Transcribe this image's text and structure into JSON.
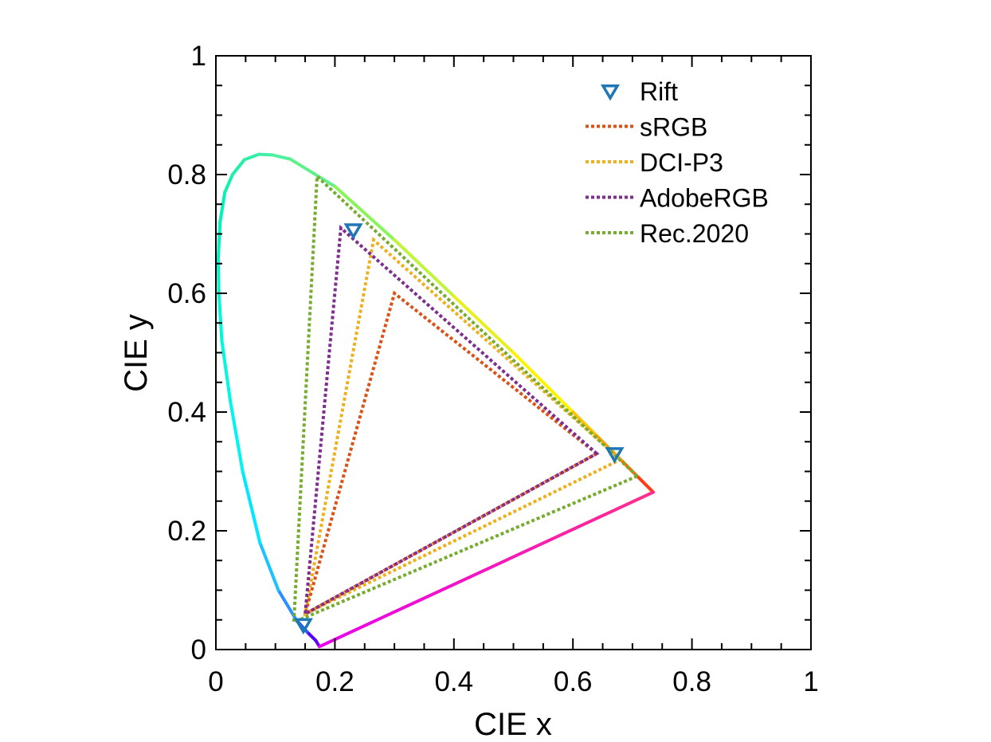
{
  "chart_data": {
    "type": "scatter",
    "xlabel": "CIE x",
    "ylabel": "CIE y",
    "xlim": [
      0,
      1
    ],
    "ylim": [
      0,
      1
    ],
    "x_ticks": [
      0,
      0.2,
      0.4,
      0.6,
      0.8,
      1
    ],
    "y_ticks": [
      0,
      0.2,
      0.4,
      0.6,
      0.8,
      1
    ],
    "x_tick_labels": [
      "0",
      "0.2",
      "0.4",
      "0.6",
      "0.8",
      "1"
    ],
    "y_tick_labels": [
      "0",
      "0.2",
      "0.4",
      "0.6",
      "0.8",
      "1"
    ],
    "grid": false,
    "legend_position": "top-right",
    "spectral_locus": {
      "x": [
        0.174,
        0.168,
        0.153,
        0.135,
        0.105,
        0.074,
        0.045,
        0.024,
        0.01,
        0.005,
        0.004,
        0.007,
        0.015,
        0.028,
        0.048,
        0.072,
        0.095,
        0.125,
        0.2,
        0.3,
        0.4,
        0.5,
        0.6,
        0.64,
        0.68,
        0.71,
        0.735
      ],
      "y": [
        0.005,
        0.015,
        0.03,
        0.05,
        0.1,
        0.18,
        0.3,
        0.42,
        0.52,
        0.6,
        0.66,
        0.72,
        0.77,
        0.8,
        0.825,
        0.834,
        0.833,
        0.826,
        0.78,
        0.69,
        0.595,
        0.5,
        0.4,
        0.36,
        0.32,
        0.29,
        0.265
      ],
      "colors": [
        "#6a00ff",
        "#5400ff",
        "#2a5cff",
        "#2a8fff",
        "#1bc4ff",
        "#00e8ff",
        "#00f4f0",
        "#00f7e0",
        "#00f8d4",
        "#00f5c8",
        "#00f2be",
        "#00f2b8",
        "#10f2b0",
        "#20f0aa",
        "#30f0a8",
        "#40f0a6",
        "#52f0a0",
        "#62f08c",
        "#8af55a",
        "#c0f53c",
        "#e8f020",
        "#fff300",
        "#ffc400",
        "#ffa000",
        "#ff6a00",
        "#ff3c10",
        "#ff1a3a"
      ],
      "purple_line_color": "#ff2f8a",
      "purple_line_color_end": "#e800f0"
    },
    "series": [
      {
        "name": "Rift",
        "kind": "marker",
        "marker": "triangle-down",
        "color": "#1f77b4",
        "x": [
          0.67,
          0.231,
          0.147
        ],
        "y": [
          0.33,
          0.707,
          0.042
        ]
      },
      {
        "name": "sRGB",
        "kind": "dotted-triangle",
        "color": "#d95319",
        "x": [
          0.64,
          0.3,
          0.15
        ],
        "y": [
          0.33,
          0.6,
          0.06
        ]
      },
      {
        "name": "DCI-P3",
        "kind": "dotted-triangle",
        "color": "#edb120",
        "x": [
          0.68,
          0.265,
          0.15
        ],
        "y": [
          0.32,
          0.69,
          0.06
        ]
      },
      {
        "name": "AdobeRGB",
        "kind": "dotted-triangle",
        "color": "#7e2f8e",
        "x": [
          0.64,
          0.21,
          0.15
        ],
        "y": [
          0.33,
          0.71,
          0.06
        ]
      },
      {
        "name": "Rec.2020",
        "kind": "dotted-triangle",
        "color": "#77ac30",
        "x": [
          0.708,
          0.17,
          0.131
        ],
        "y": [
          0.292,
          0.797,
          0.046
        ]
      }
    ]
  }
}
